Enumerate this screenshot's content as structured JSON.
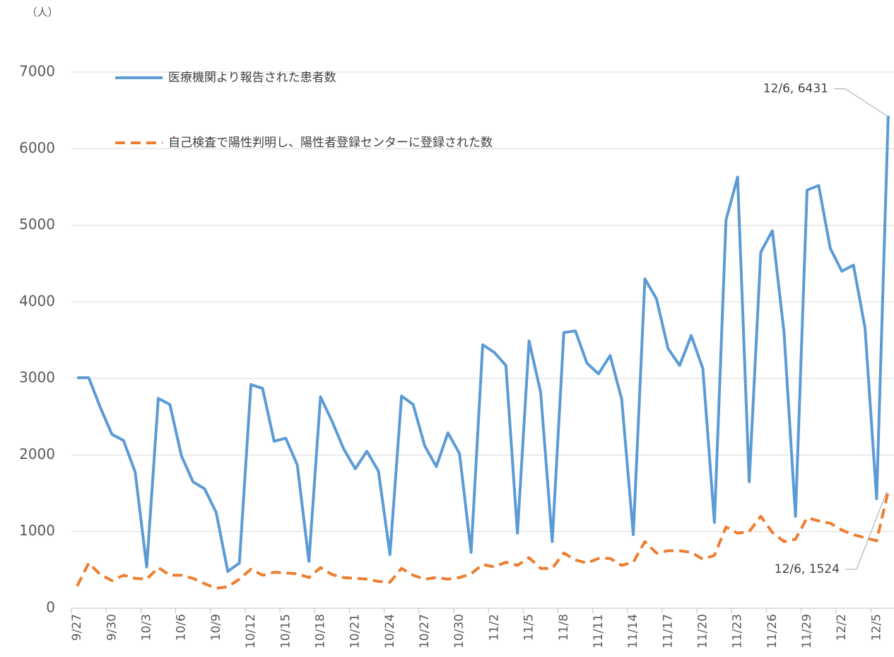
{
  "chart_data": {
    "type": "line",
    "y_unit": "（人）",
    "categories": [
      "9/27",
      null,
      null,
      "9/30",
      null,
      null,
      "10/3",
      null,
      null,
      "10/6",
      null,
      null,
      "10/9",
      null,
      null,
      "10/12",
      null,
      null,
      "10/15",
      null,
      null,
      "10/18",
      null,
      null,
      "10/21",
      null,
      null,
      "10/24",
      null,
      null,
      "10/27",
      null,
      null,
      "10/30",
      null,
      null,
      "11/2",
      null,
      null,
      "11/5",
      null,
      null,
      "11/8",
      null,
      null,
      "11/11",
      null,
      null,
      "11/14",
      null,
      null,
      "11/17",
      null,
      null,
      "11/20",
      null,
      null,
      "11/23",
      null,
      null,
      "11/26",
      null,
      null,
      "11/29",
      null,
      null,
      "12/2",
      null,
      null,
      "12/5",
      null
    ],
    "series": [
      {
        "name": "医療機関より報告された患者数",
        "color": "#5b9bd5",
        "dash": false,
        "values": [
          3010,
          3010,
          2620,
          2270,
          2190,
          1780,
          540,
          2740,
          2660,
          1990,
          1650,
          1560,
          1250,
          480,
          590,
          2920,
          2870,
          2180,
          2220,
          1870,
          610,
          2760,
          2440,
          2080,
          1820,
          2050,
          1790,
          700,
          2770,
          2660,
          2120,
          1850,
          2290,
          2020,
          730,
          3440,
          3340,
          3170,
          980,
          3490,
          2820,
          870,
          3600,
          3620,
          3200,
          3060,
          3300,
          2730,
          960,
          4300,
          4040,
          3390,
          3170,
          3560,
          3130,
          1120,
          5070,
          5630,
          1650,
          4650,
          4930,
          3610,
          1200,
          5460,
          5520,
          4700,
          4400,
          4480,
          3660,
          1430,
          6431
        ],
        "value_labels": [
          null,
          null,
          null,
          null,
          null,
          null,
          null,
          null,
          null,
          null,
          null,
          null,
          null,
          null,
          null,
          null,
          null,
          null,
          null,
          null,
          null,
          null,
          null,
          null,
          null,
          null,
          null,
          null,
          null,
          null,
          null,
          null,
          null,
          null,
          null,
          null,
          null,
          null,
          null,
          null,
          null,
          null,
          null,
          null,
          null,
          null,
          null,
          null,
          null,
          null,
          null,
          null,
          null,
          null,
          null,
          null,
          null,
          null,
          null,
          null,
          null,
          null,
          null,
          null,
          null,
          null,
          null,
          null,
          null,
          null,
          "12/6, 6431"
        ]
      },
      {
        "name": "自己検査で陽性判明し、陽性者登録センターに登録された数",
        "color": "#ed7d31",
        "dash": true,
        "values": [
          290,
          590,
          440,
          360,
          430,
          390,
          380,
          530,
          430,
          430,
          390,
          320,
          260,
          280,
          380,
          510,
          430,
          470,
          460,
          450,
          400,
          530,
          440,
          400,
          390,
          380,
          350,
          340,
          520,
          430,
          380,
          400,
          380,
          400,
          450,
          570,
          540,
          600,
          560,
          660,
          520,
          520,
          720,
          630,
          590,
          650,
          650,
          560,
          600,
          870,
          720,
          750,
          750,
          730,
          640,
          690,
          1060,
          980,
          1000,
          1200,
          990,
          870,
          900,
          1180,
          1140,
          1110,
          1020,
          960,
          920,
          880,
          1524
        ],
        "value_labels": [
          null,
          null,
          null,
          null,
          null,
          null,
          null,
          null,
          null,
          null,
          null,
          null,
          null,
          null,
          null,
          null,
          null,
          null,
          null,
          null,
          null,
          null,
          null,
          null,
          null,
          null,
          null,
          null,
          null,
          null,
          null,
          null,
          null,
          null,
          null,
          null,
          null,
          null,
          null,
          null,
          null,
          null,
          null,
          null,
          null,
          null,
          null,
          null,
          null,
          null,
          null,
          null,
          null,
          null,
          null,
          null,
          null,
          null,
          null,
          null,
          null,
          null,
          null,
          null,
          null,
          null,
          null,
          null,
          null,
          null,
          "12/6, 1524"
        ]
      }
    ],
    "ylim": [
      0,
      7000
    ],
    "yticks": [
      0,
      1000,
      2000,
      3000,
      4000,
      5000,
      6000,
      7000
    ],
    "grid": true,
    "legend": "top-left"
  }
}
